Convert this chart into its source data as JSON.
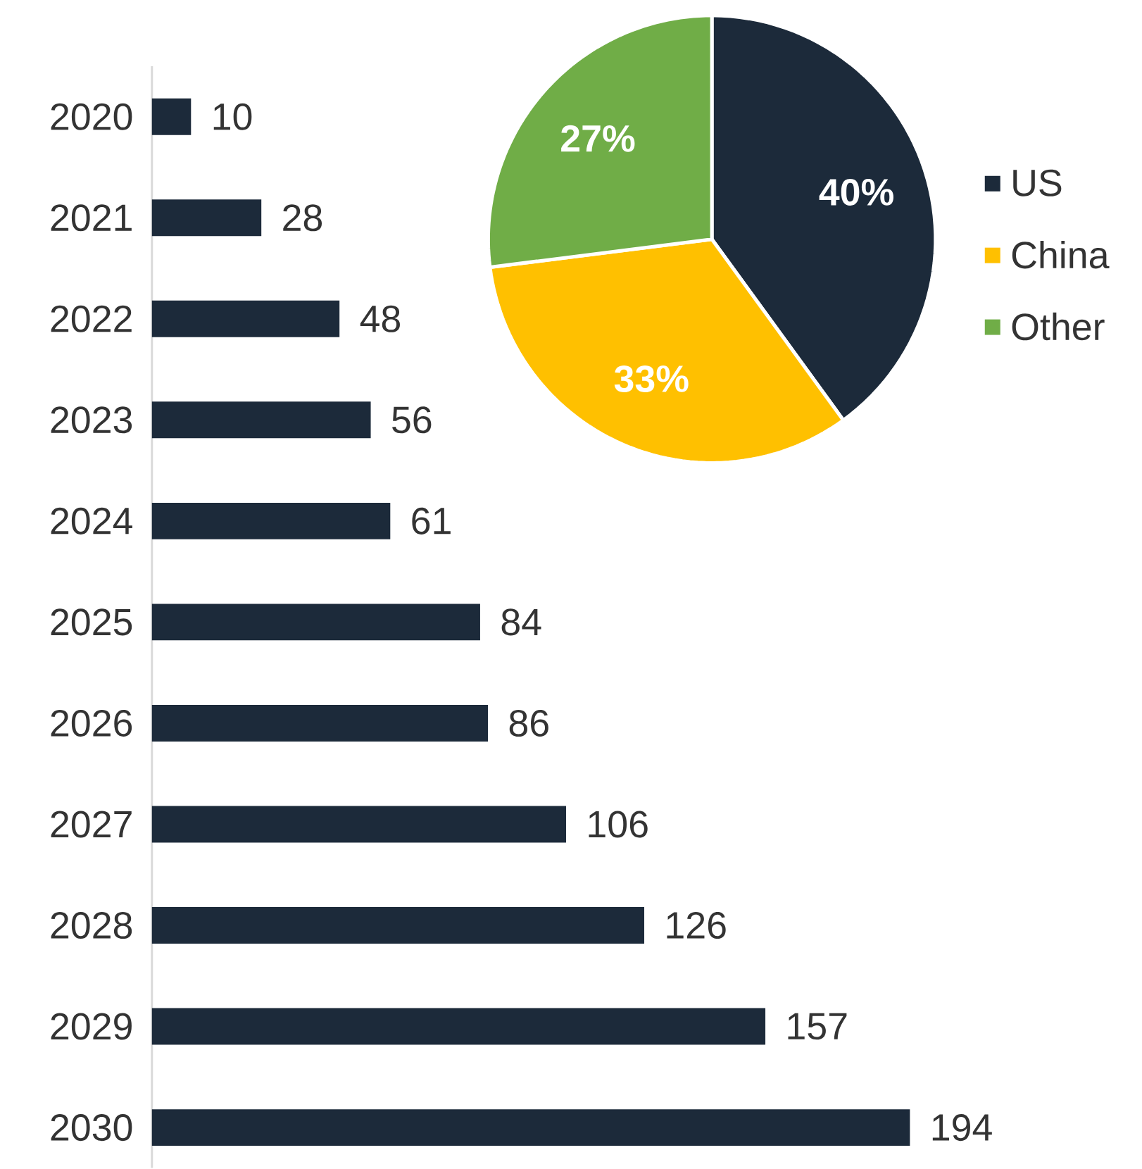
{
  "chart_data": [
    {
      "type": "bar",
      "orientation": "horizontal",
      "categories": [
        "2020",
        "2021",
        "2022",
        "2023",
        "2024",
        "2025",
        "2026",
        "2027",
        "2028",
        "2029",
        "2030"
      ],
      "values": [
        10,
        28,
        48,
        56,
        61,
        84,
        86,
        106,
        126,
        157,
        194
      ],
      "color": "#1c2a3a",
      "data_labels": true,
      "tick_labels": "y"
    },
    {
      "type": "pie",
      "categories": [
        "US",
        "China",
        "Other"
      ],
      "values": [
        40,
        33,
        27
      ],
      "colors": [
        "#1c2a3a",
        "#ffc000",
        "#70ad47"
      ],
      "value_labels": [
        "40%",
        "33%",
        "27%"
      ],
      "legend": "right"
    }
  ]
}
